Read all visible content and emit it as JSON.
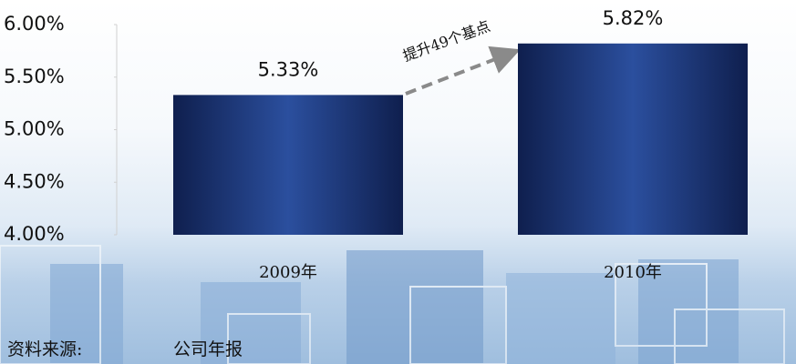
{
  "chart_data": {
    "type": "bar",
    "categories": [
      "2009年",
      "2010年"
    ],
    "values": [
      5.33,
      5.82
    ],
    "value_labels": [
      "5.33%",
      "5.82%"
    ],
    "color": "#0f1f4e",
    "ylim": [
      4,
      6
    ],
    "yticks": [
      {
        "value": 4,
        "label": "4.00%"
      },
      {
        "value": 4.5,
        "label": "4.50%"
      },
      {
        "value": 5,
        "label": "5.00%"
      },
      {
        "value": 5.5,
        "label": "5.50%"
      },
      {
        "value": 6,
        "label": "6.00%"
      }
    ],
    "annotation": "提升49个基点",
    "grid": false
  },
  "source": {
    "label": "资料来源:",
    "text": "公司年报"
  }
}
